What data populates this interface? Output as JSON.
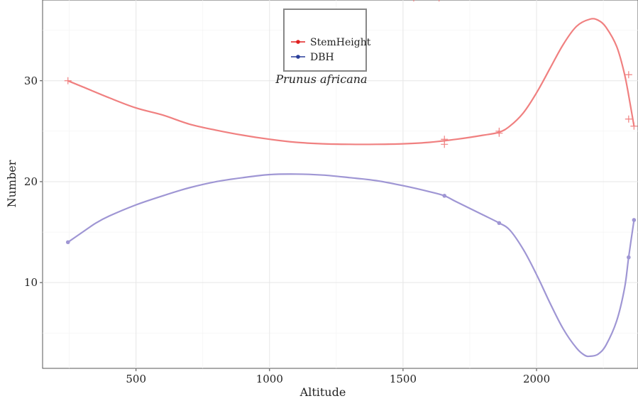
{
  "chart_data": {
    "type": "line",
    "title": "",
    "xlabel": "Altitude",
    "ylabel": "Number",
    "xlim": [
      150,
      2380
    ],
    "ylim": [
      1.5,
      38
    ],
    "x_ticks": [
      500,
      1000,
      1500,
      2000
    ],
    "y_ticks": [
      10,
      20,
      30
    ],
    "grid": true,
    "legend_placement": "top-center",
    "annotation": "Prunus africana",
    "series": [
      {
        "name": "StemHeight",
        "color": "#f08080",
        "marker": "plus",
        "points": [
          {
            "x": 245,
            "y": 30.0
          },
          {
            "x": 1655,
            "y": 24.2
          },
          {
            "x": 1655,
            "y": 23.7
          },
          {
            "x": 1860,
            "y": 25.0
          },
          {
            "x": 1860,
            "y": 24.8
          },
          {
            "x": 2345,
            "y": 30.6
          },
          {
            "x": 2345,
            "y": 26.2
          },
          {
            "x": 2365,
            "y": 25.5
          },
          {
            "x": 1540,
            "y": 38.2
          },
          {
            "x": 1635,
            "y": 38.2
          }
        ],
        "curve": [
          [
            245,
            30.0
          ],
          [
            300,
            29.4
          ],
          [
            400,
            28.3
          ],
          [
            500,
            27.3
          ],
          [
            600,
            26.6
          ],
          [
            700,
            25.7
          ],
          [
            800,
            25.1
          ],
          [
            900,
            24.6
          ],
          [
            1000,
            24.2
          ],
          [
            1100,
            23.9
          ],
          [
            1200,
            23.75
          ],
          [
            1300,
            23.7
          ],
          [
            1400,
            23.7
          ],
          [
            1500,
            23.75
          ],
          [
            1600,
            23.9
          ],
          [
            1700,
            24.2
          ],
          [
            1800,
            24.6
          ],
          [
            1860,
            24.9
          ],
          [
            1900,
            25.5
          ],
          [
            1950,
            26.8
          ],
          [
            2000,
            28.8
          ],
          [
            2050,
            31.2
          ],
          [
            2100,
            33.6
          ],
          [
            2150,
            35.4
          ],
          [
            2200,
            36.1
          ],
          [
            2230,
            36.0
          ],
          [
            2260,
            35.3
          ],
          [
            2300,
            33.4
          ],
          [
            2330,
            30.6
          ],
          [
            2350,
            27.8
          ],
          [
            2365,
            25.5
          ]
        ]
      },
      {
        "name": "DBH",
        "color": "#9f96d4",
        "marker": "dot",
        "points": [
          {
            "x": 245,
            "y": 14.0
          },
          {
            "x": 1655,
            "y": 18.6
          },
          {
            "x": 1860,
            "y": 15.9
          },
          {
            "x": 2345,
            "y": 12.5
          },
          {
            "x": 2365,
            "y": 16.2
          }
        ],
        "curve": [
          [
            245,
            14.0
          ],
          [
            300,
            15.0
          ],
          [
            350,
            15.9
          ],
          [
            400,
            16.6
          ],
          [
            500,
            17.7
          ],
          [
            600,
            18.6
          ],
          [
            700,
            19.4
          ],
          [
            800,
            20.0
          ],
          [
            900,
            20.4
          ],
          [
            1000,
            20.7
          ],
          [
            1100,
            20.75
          ],
          [
            1200,
            20.65
          ],
          [
            1300,
            20.4
          ],
          [
            1400,
            20.1
          ],
          [
            1500,
            19.6
          ],
          [
            1600,
            19.0
          ],
          [
            1655,
            18.6
          ],
          [
            1700,
            18.0
          ],
          [
            1800,
            16.7
          ],
          [
            1860,
            15.9
          ],
          [
            1900,
            15.2
          ],
          [
            1950,
            13.3
          ],
          [
            2000,
            10.8
          ],
          [
            2050,
            8.0
          ],
          [
            2100,
            5.4
          ],
          [
            2150,
            3.5
          ],
          [
            2180,
            2.8
          ],
          [
            2200,
            2.7
          ],
          [
            2230,
            2.9
          ],
          [
            2260,
            3.8
          ],
          [
            2300,
            6.2
          ],
          [
            2330,
            9.5
          ],
          [
            2345,
            12.5
          ],
          [
            2365,
            16.2
          ]
        ]
      }
    ]
  }
}
